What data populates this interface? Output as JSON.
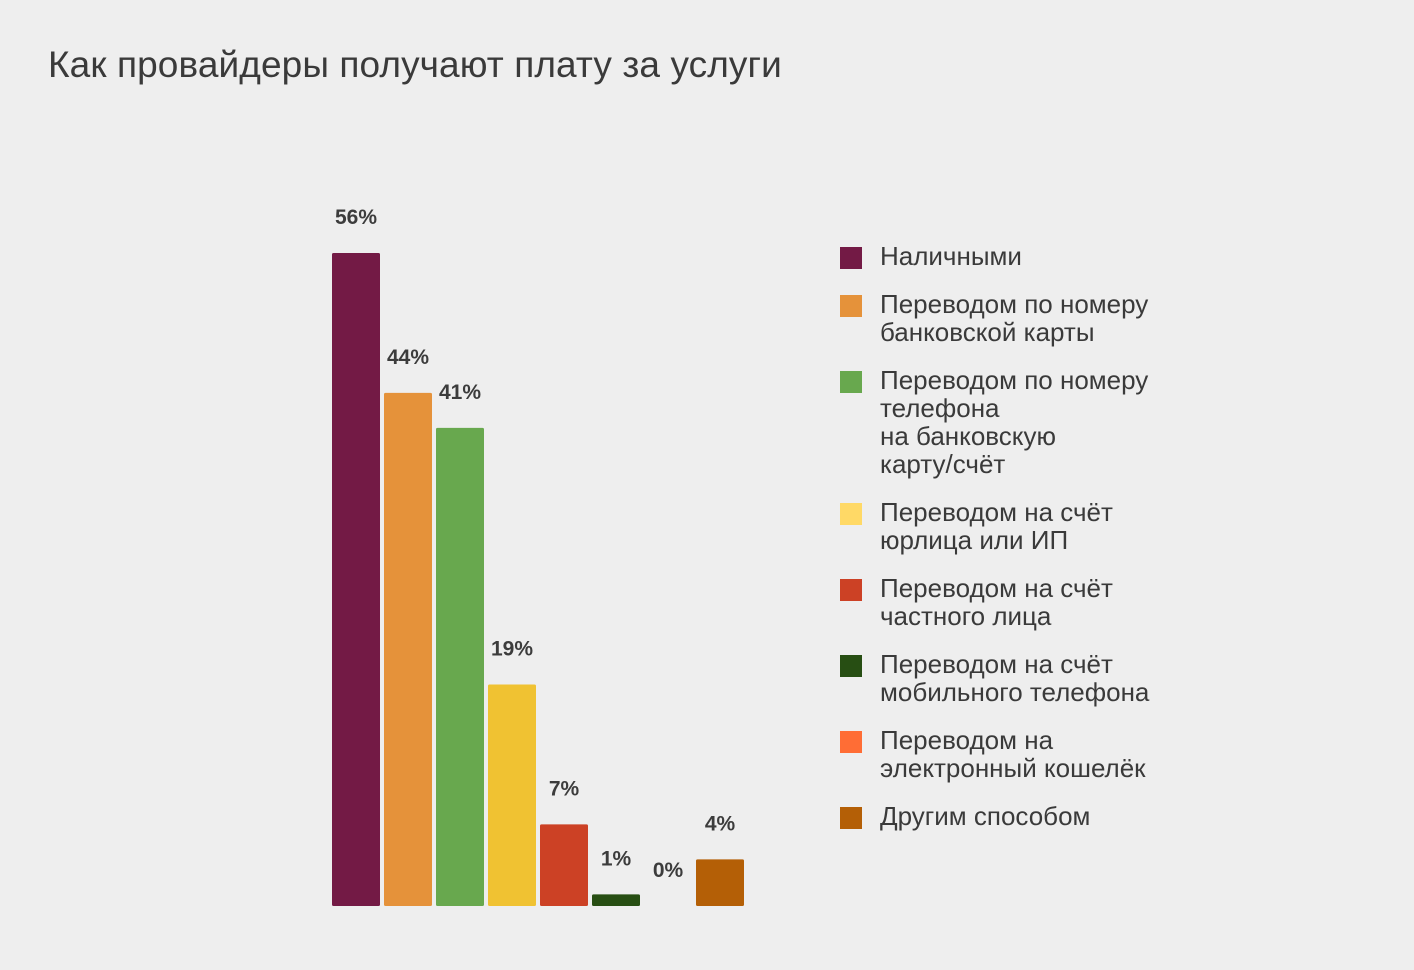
{
  "chart_data": {
    "type": "bar",
    "title": "Как провайдеры получают плату за услуги",
    "xlabel": "",
    "ylabel": "",
    "ylim": [
      0,
      56
    ],
    "grid": false,
    "legend_position": "right",
    "series": [
      {
        "name": "Наличными",
        "value": 56,
        "label": "56%",
        "color": "#731a45"
      },
      {
        "name": "Переводом по номеру\nбанковской карты",
        "value": 44,
        "label": "44%",
        "color": "#e5923a"
      },
      {
        "name": "Переводом по номеру\nтелефона\nна банковскую\nкарту/счёт",
        "value": 41,
        "label": "41%",
        "color": "#68a84e"
      },
      {
        "name": "Переводом на счёт\nюрлица или ИП",
        "value": 19,
        "label": "19%",
        "color": "#f0c232",
        "legend_color": "#ffd966"
      },
      {
        "name": "Переводом на счёт\nчастного лица",
        "value": 7,
        "label": "7%",
        "color": "#cc4125"
      },
      {
        "name": "Переводом на счёт\nмобильного телефона",
        "value": 1,
        "label": "1%",
        "color": "#274e13"
      },
      {
        "name": "Переводом на\nэлектронный кошелёк",
        "value": 0,
        "label": "0%",
        "color": "#ff6d35"
      },
      {
        "name": "Другим способом",
        "value": 4,
        "label": "4%",
        "color": "#b45f06"
      }
    ]
  }
}
